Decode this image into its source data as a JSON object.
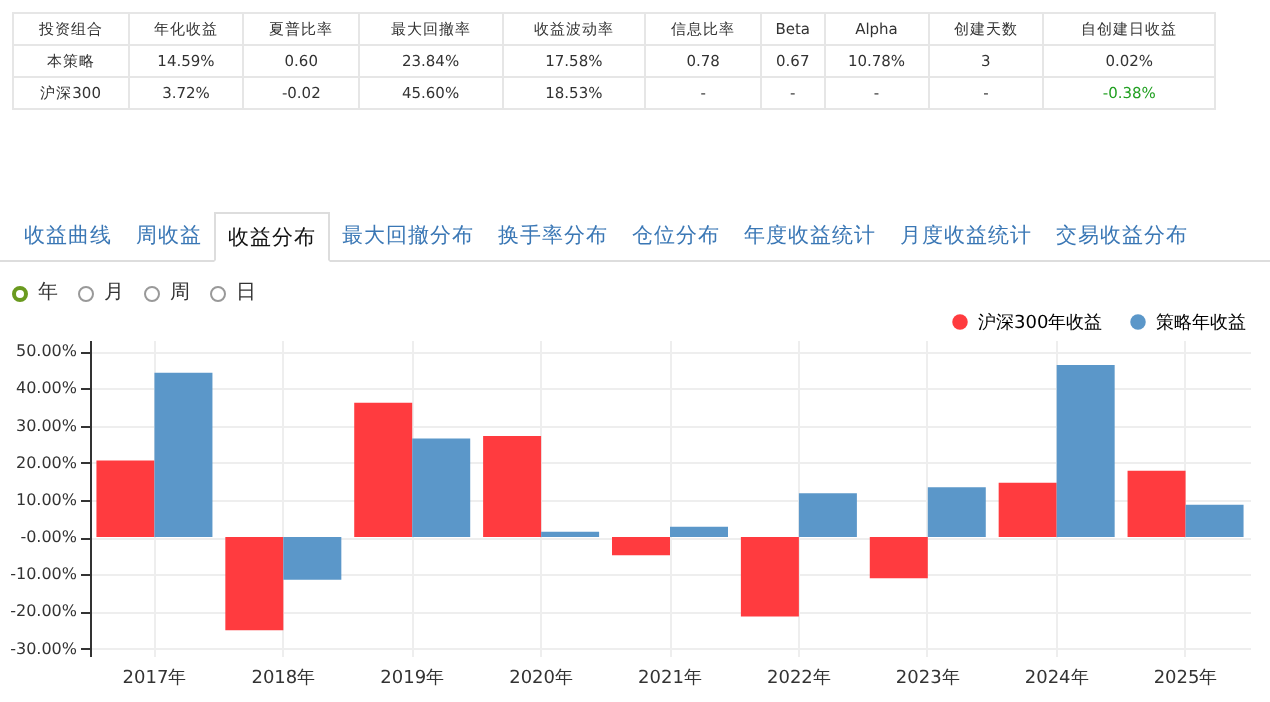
{
  "chart_data": [
    {
      "type": "other",
      "annotations": [
        "投资组合",
        "年化收益",
        "夏普比率",
        "最大回撤率",
        "收益波动率",
        "信息比率",
        "Beta",
        "Alpha",
        "创建天数",
        "自创建日收益",
        "本策略",
        "14.59%",
        "0.60",
        "23.84%",
        "17.58%",
        "0.78",
        "0.67",
        "10.78%",
        "3",
        "0.02%",
        "沪深300",
        "3.72%",
        "-0.02",
        "45.60%",
        "18.53%",
        "-",
        "-",
        "-",
        "-",
        "-0.38%"
      ]
    },
    {
      "type": "other",
      "annotations": [
        "收益曲线",
        "周收益",
        "收益分布",
        "最大回撤分布",
        "换手率分布",
        "仓位分布",
        "年度收益统计",
        "月度收益统计",
        "交易收益分布",
        "年",
        "月",
        "周",
        "日"
      ]
    },
    {
      "type": "bar",
      "categories": [
        "2017年",
        "2018年",
        "2019年",
        "2020年",
        "2021年",
        "2022年",
        "2023年",
        "2024年",
        "2025年"
      ],
      "series": [
        {
          "name": "沪深300年收益",
          "color": "#ff3b3f",
          "values": [
            20.6,
            -25.1,
            36.1,
            27.2,
            -4.9,
            -21.4,
            -11.1,
            14.6,
            17.8
          ]
        },
        {
          "name": "策略年收益",
          "color": "#5b97c9",
          "values": [
            44.2,
            -11.5,
            26.5,
            1.4,
            2.8,
            11.8,
            13.4,
            46.3,
            8.7
          ]
        }
      ],
      "ylim": [
        -32,
        53
      ],
      "yticks": [
        {
          "value": 50,
          "label": "50.00%"
        },
        {
          "value": 40,
          "label": "40.00%"
        },
        {
          "value": 30,
          "label": "30.00%"
        },
        {
          "value": 20,
          "label": "20.00%"
        },
        {
          "value": 10,
          "label": "10.00%"
        },
        {
          "value": 0,
          "label": "-0.00%"
        },
        {
          "value": -10,
          "label": "-10.00%"
        },
        {
          "value": -20,
          "label": "-20.00%"
        },
        {
          "value": -30,
          "label": "-30.00%"
        }
      ],
      "grid": true,
      "legend": "top right"
    }
  ]
}
